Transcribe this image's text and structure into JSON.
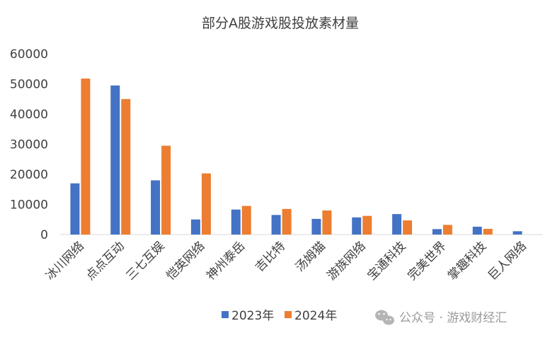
{
  "chart_data": {
    "type": "bar",
    "title": "部分A股游戏股投放素材量",
    "xlabel": "",
    "ylabel": "",
    "ylim": [
      0,
      60000
    ],
    "yticks": [
      "0",
      "10000",
      "20000",
      "30000",
      "40000",
      "50000",
      "60000"
    ],
    "grid": false,
    "legend_position": "bottom",
    "categories": [
      "冰川网络",
      "点点互动",
      "三七互娱",
      "恺英网络",
      "神州泰岳",
      "吉比特",
      "汤姆猫",
      "游族网络",
      "宝通科技",
      "完美世界",
      "掌趣科技",
      "巨人网络"
    ],
    "series": [
      {
        "name": "2023年",
        "color": "#4472c4",
        "values": [
          17000,
          49500,
          18000,
          5000,
          8300,
          6500,
          5200,
          5700,
          6800,
          1800,
          2600,
          1100
        ]
      },
      {
        "name": "2024年",
        "color": "#ed7d31",
        "values": [
          51800,
          45000,
          29500,
          20300,
          9500,
          8500,
          8000,
          6200,
          4700,
          3200,
          1900,
          0
        ]
      }
    ]
  },
  "watermark": {
    "text": "公众号 · 游戏财经汇",
    "icon": "wechat-icon"
  }
}
